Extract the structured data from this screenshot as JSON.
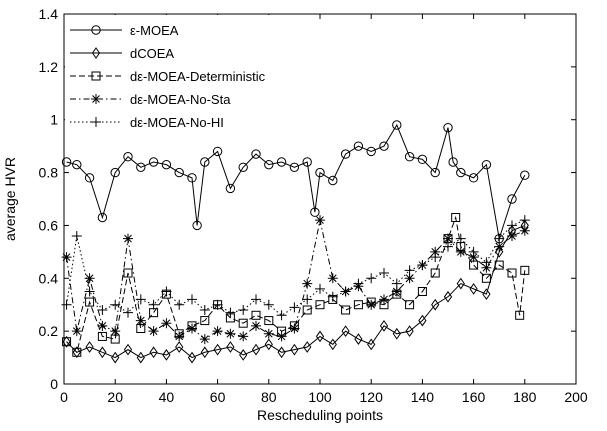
{
  "chart_data": {
    "type": "line",
    "xlabel": "Rescheduling points",
    "ylabel": "average HVR",
    "xlim": [
      0,
      200
    ],
    "ylim": [
      0,
      1.4
    ],
    "xticks": [
      0,
      20,
      40,
      60,
      80,
      100,
      120,
      140,
      160,
      180,
      200
    ],
    "yticks": [
      0,
      0.2,
      0.4,
      0.6,
      0.8,
      1.0,
      1.2,
      1.4
    ],
    "ytick_labels": [
      "0",
      "0.2",
      "0.4",
      "0.6",
      "0.8",
      "1",
      "1.2",
      "1.4"
    ],
    "grid": false,
    "legend_position": "top-left",
    "series": [
      {
        "name": "ε-MOEA",
        "marker": "circle",
        "dash": "solid",
        "x": [
          1,
          5,
          10,
          15,
          20,
          25,
          30,
          35,
          40,
          45,
          50,
          52,
          55,
          60,
          65,
          70,
          75,
          80,
          85,
          90,
          95,
          98,
          100,
          105,
          110,
          115,
          120,
          125,
          130,
          135,
          140,
          145,
          150,
          152,
          155,
          160,
          165,
          170,
          175,
          180
        ],
        "y": [
          0.84,
          0.83,
          0.78,
          0.63,
          0.8,
          0.86,
          0.82,
          0.84,
          0.83,
          0.8,
          0.78,
          0.6,
          0.84,
          0.88,
          0.74,
          0.82,
          0.87,
          0.83,
          0.84,
          0.82,
          0.84,
          0.65,
          0.8,
          0.77,
          0.87,
          0.9,
          0.88,
          0.9,
          0.98,
          0.86,
          0.85,
          0.8,
          0.97,
          0.84,
          0.8,
          0.78,
          0.83,
          0.55,
          0.7,
          0.79
        ]
      },
      {
        "name": "dCOEA",
        "marker": "diamond",
        "dash": "solid",
        "x": [
          1,
          5,
          10,
          15,
          20,
          25,
          30,
          35,
          40,
          45,
          50,
          55,
          60,
          65,
          70,
          75,
          80,
          85,
          90,
          95,
          100,
          105,
          110,
          115,
          120,
          125,
          130,
          135,
          140,
          145,
          150,
          155,
          160,
          165,
          170,
          175,
          180
        ],
        "y": [
          0.16,
          0.12,
          0.14,
          0.12,
          0.1,
          0.13,
          0.1,
          0.12,
          0.11,
          0.14,
          0.1,
          0.12,
          0.13,
          0.14,
          0.11,
          0.13,
          0.15,
          0.12,
          0.13,
          0.14,
          0.18,
          0.15,
          0.2,
          0.17,
          0.15,
          0.22,
          0.19,
          0.2,
          0.24,
          0.3,
          0.33,
          0.38,
          0.36,
          0.34,
          0.5,
          0.58,
          0.6
        ]
      },
      {
        "name": "dε-MOEA-Deterministic",
        "marker": "square",
        "dash": "dashed",
        "x": [
          1,
          5,
          10,
          15,
          20,
          25,
          30,
          35,
          40,
          45,
          50,
          55,
          60,
          65,
          70,
          75,
          80,
          85,
          90,
          95,
          100,
          105,
          110,
          115,
          120,
          125,
          130,
          135,
          140,
          145,
          150,
          153,
          155,
          160,
          165,
          170,
          175,
          178,
          180
        ],
        "y": [
          0.16,
          0.12,
          0.31,
          0.18,
          0.17,
          0.42,
          0.21,
          0.27,
          0.34,
          0.19,
          0.22,
          0.24,
          0.3,
          0.25,
          0.23,
          0.26,
          0.24,
          0.2,
          0.22,
          0.28,
          0.3,
          0.32,
          0.28,
          0.3,
          0.31,
          0.3,
          0.34,
          0.3,
          0.35,
          0.42,
          0.55,
          0.63,
          0.52,
          0.45,
          0.4,
          0.45,
          0.42,
          0.26,
          0.43
        ]
      },
      {
        "name": "dε-MOEA-No-Sta",
        "marker": "star",
        "dash": "dashdot",
        "x": [
          1,
          5,
          10,
          15,
          20,
          25,
          30,
          35,
          40,
          45,
          50,
          55,
          60,
          65,
          70,
          75,
          80,
          85,
          90,
          95,
          100,
          105,
          110,
          115,
          120,
          125,
          130,
          135,
          140,
          145,
          150,
          155,
          160,
          165,
          170,
          175,
          180
        ],
        "y": [
          0.48,
          0.2,
          0.4,
          0.22,
          0.2,
          0.55,
          0.24,
          0.2,
          0.23,
          0.18,
          0.21,
          0.17,
          0.2,
          0.19,
          0.18,
          0.22,
          0.19,
          0.18,
          0.21,
          0.38,
          0.62,
          0.4,
          0.35,
          0.37,
          0.3,
          0.32,
          0.35,
          0.4,
          0.45,
          0.5,
          0.55,
          0.5,
          0.48,
          0.44,
          0.52,
          0.56,
          0.58
        ]
      },
      {
        "name": "dε-MOEA-No-HI",
        "marker": "plus",
        "dash": "dotted",
        "x": [
          1,
          5,
          10,
          15,
          20,
          25,
          30,
          35,
          40,
          45,
          50,
          55,
          60,
          65,
          70,
          75,
          80,
          85,
          90,
          95,
          100,
          105,
          110,
          115,
          120,
          125,
          130,
          135,
          140,
          145,
          150,
          155,
          160,
          165,
          170,
          175,
          180
        ],
        "y": [
          0.3,
          0.56,
          0.35,
          0.28,
          0.3,
          0.27,
          0.32,
          0.3,
          0.35,
          0.3,
          0.32,
          0.28,
          0.3,
          0.27,
          0.28,
          0.32,
          0.3,
          0.26,
          0.29,
          0.32,
          0.36,
          0.33,
          0.35,
          0.38,
          0.4,
          0.42,
          0.38,
          0.43,
          0.45,
          0.48,
          0.52,
          0.55,
          0.5,
          0.46,
          0.55,
          0.6,
          0.62
        ]
      }
    ]
  }
}
